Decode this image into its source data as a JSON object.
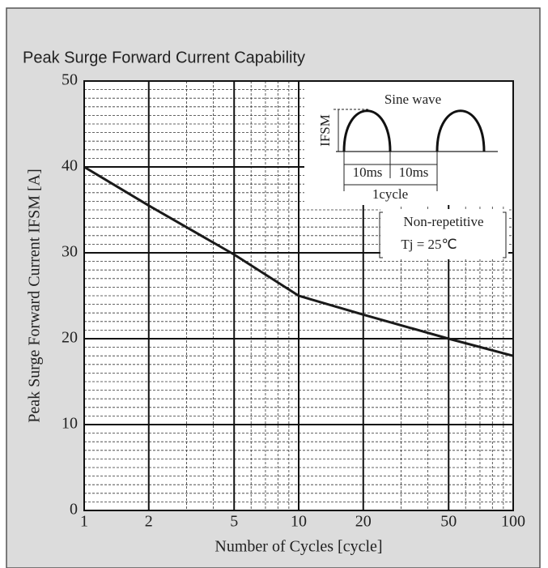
{
  "chart_data": {
    "type": "line",
    "title": "Peak Surge Forward Current Capability",
    "xlabel": "Number of Cycles [cycle]",
    "ylabel": "Peak Surge Forward Current  IFSM [A]",
    "x": [
      1,
      2,
      5,
      10,
      20,
      50,
      100
    ],
    "values": [
      40,
      35.5,
      29.8,
      25,
      22.8,
      20,
      18
    ],
    "color": "#1a1a1a",
    "xscale": "log",
    "xlim": [
      1,
      100
    ],
    "xticks": [
      1,
      2,
      5,
      10,
      20,
      50,
      100
    ],
    "xminorticks": [
      3,
      4,
      6,
      7,
      8,
      9,
      30,
      40,
      60,
      70,
      80,
      90
    ],
    "ylim": [
      0,
      50
    ],
    "yticks": [
      0,
      10,
      20,
      30,
      40,
      50
    ],
    "yminorticks": [
      1,
      2,
      3,
      4,
      5,
      6,
      7,
      8,
      9,
      11,
      12,
      13,
      14,
      15,
      16,
      17,
      18,
      19,
      21,
      22,
      23,
      24,
      25,
      26,
      27,
      28,
      29,
      31,
      32,
      33,
      34,
      35,
      36,
      37,
      38,
      39,
      41,
      42,
      43,
      44,
      45,
      46,
      47,
      48,
      49
    ],
    "grid": true,
    "annotations": {
      "waveform_title": "Sine wave",
      "waveform_axis": "IFSM",
      "half_period_1": "10ms",
      "half_period_2": "10ms",
      "period": "1cycle",
      "condition_1": "Non-repetitive",
      "condition_2": "Tj = 25℃"
    }
  }
}
